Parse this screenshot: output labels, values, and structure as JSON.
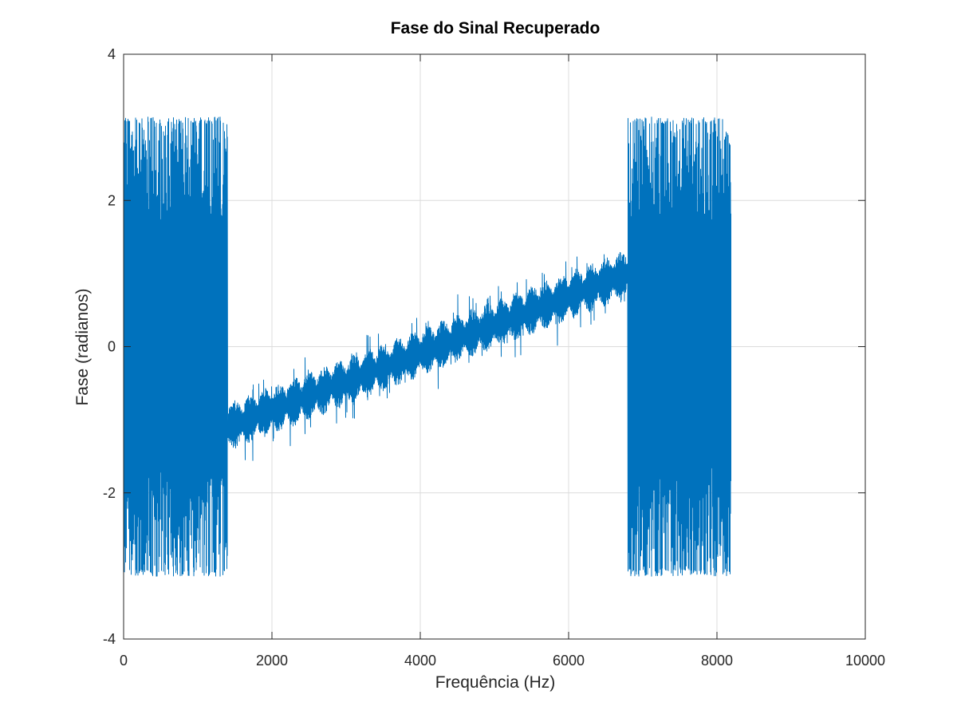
{
  "chart_data": {
    "type": "line",
    "title": "Fase do Sinal Recuperado",
    "xlabel": "Frequência (Hz)",
    "ylabel": "Fase (radianos)",
    "xlim": [
      0,
      10000
    ],
    "ylim": [
      -4,
      4
    ],
    "xticks": [
      0,
      2000,
      4000,
      6000,
      8000,
      10000
    ],
    "xtick_labels": [
      "0",
      "2000",
      "4000",
      "6000",
      "8000",
      "10000"
    ],
    "yticks": [
      -4,
      -2,
      0,
      2,
      4
    ],
    "ytick_labels": [
      "-4",
      "-2",
      "0",
      "2",
      "4"
    ],
    "grid": true,
    "legend": "none",
    "series": [
      {
        "color": "#0072bd",
        "x_range": [
          0,
          8192
        ],
        "regions": [
          {
            "x_start": 0,
            "x_end": 1400,
            "behavior": "wrapped noise",
            "y_min": -3.14,
            "y_max": 3.14
          },
          {
            "x_start": 1400,
            "x_end": 6800,
            "behavior": "linear trend",
            "y_at_start": -1.1,
            "y_at_end": 1.0
          },
          {
            "x_start": 6800,
            "x_end": 8192,
            "behavior": "wrapped noise",
            "y_min": -3.14,
            "y_max": 3.14
          }
        ]
      }
    ]
  }
}
